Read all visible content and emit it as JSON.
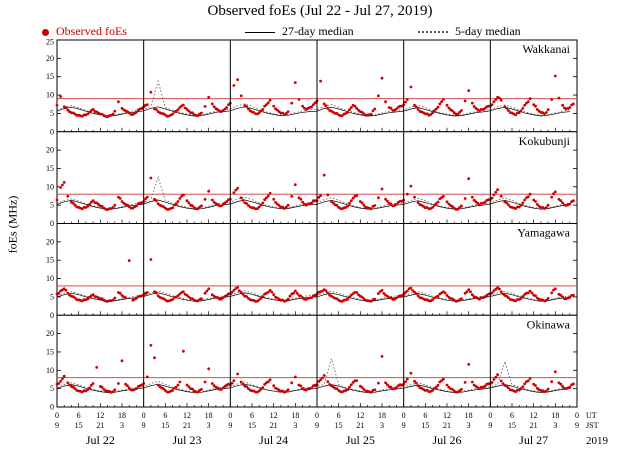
{
  "title": "Observed foEs (Jul 22 - Jul 27, 2019)",
  "legend": [
    {
      "label": "Observed foEs",
      "marker": "dot",
      "color": "#cc0000"
    },
    {
      "label": "27-day median",
      "marker": "solid-line",
      "color": "#000000"
    },
    {
      "label": "5-day median",
      "marker": "dotted-line",
      "color": "#666666"
    }
  ],
  "ylabel": "foEs (MHz)",
  "corner": {
    "ut": "UT",
    "jst": "JST",
    "year": "2019"
  },
  "threshold_color": "#cc3333",
  "x_axis": {
    "days": [
      "Jul 22",
      "Jul 23",
      "Jul 24",
      "Jul 25",
      "Jul 26",
      "Jul 27"
    ],
    "ut_ticks": [
      0,
      6,
      12,
      18
    ],
    "jst_ticks": [
      9,
      15,
      21,
      3
    ],
    "hours_total": 144
  },
  "chart_data": [
    {
      "type": "scatter+line",
      "station": "Wakkanai",
      "ylim": [
        0,
        25
      ],
      "yticks": [
        0,
        5,
        10,
        15,
        20,
        25
      ],
      "threshold_mhz": 9,
      "observed_step_hours": 1,
      "median_step_hours": 2,
      "observed": [
        7.2,
        9.6,
        6.8,
        5.9,
        5.2,
        4.8,
        4.5,
        4.2,
        4.6,
        5.3,
        6.1,
        5.4,
        4.8,
        4.4,
        4.1,
        4.5,
        5.6,
        8.2,
        6.4,
        5.7,
        5.1,
        4.7,
        5.3,
        6.2,
        6.8,
        7.4,
        10.8,
        6.2,
        5.5,
        5.0,
        4.6,
        4.3,
        4.8,
        5.6,
        6.6,
        7.3,
        6.1,
        5.2,
        4.7,
        4.4,
        5.1,
        6.9,
        9.4,
        7.6,
        6.3,
        5.6,
        5.8,
        6.6,
        7.8,
        12.6,
        14.2,
        9.8,
        7.1,
        6.2,
        5.4,
        4.9,
        5.2,
        6.1,
        7.4,
        8.6,
        7.0,
        5.9,
        5.1,
        4.7,
        5.5,
        7.8,
        13.4,
        8.8,
        7.0,
        6.1,
        6.6,
        7.4,
        8.4,
        13.8,
        7.6,
        6.4,
        5.6,
        5.0,
        4.6,
        4.4,
        5.0,
        6.0,
        7.2,
        6.4,
        5.5,
        4.9,
        4.5,
        4.8,
        6.2,
        9.8,
        14.6,
        8.2,
        6.6,
        5.8,
        6.2,
        7.0,
        7.4,
        8.8,
        12.2,
        7.2,
        6.1,
        5.4,
        4.9,
        4.5,
        5.1,
        6.2,
        7.6,
        8.8,
        7.2,
        6.0,
        5.2,
        4.8,
        5.8,
        8.4,
        11.2,
        7.8,
        6.4,
        5.7,
        6.1,
        6.8,
        7.0,
        8.2,
        9.4,
        8.6,
        6.8,
        5.8,
        5.1,
        4.6,
        5.2,
        6.4,
        7.8,
        9.0,
        7.4,
        6.1,
        5.3,
        4.9,
        6.0,
        8.8,
        15.2,
        9.2,
        7.2,
        6.2,
        6.6,
        7.6
      ],
      "median27": [
        5.6,
        6.3,
        6.7,
        6.2,
        5.6,
        5.0,
        4.6,
        4.3,
        4.4,
        4.8,
        5.2,
        5.4,
        5.7,
        6.4,
        6.8,
        6.2,
        5.6,
        5.0,
        4.6,
        4.3,
        4.4,
        4.8,
        5.3,
        5.5,
        5.7,
        6.4,
        6.8,
        6.3,
        5.7,
        5.1,
        4.7,
        4.4,
        4.5,
        4.9,
        5.3,
        5.5,
        5.6,
        6.3,
        6.7,
        6.2,
        5.6,
        5.0,
        4.6,
        4.3,
        4.4,
        4.8,
        5.2,
        5.4,
        5.6,
        6.2,
        6.6,
        6.1,
        5.5,
        5.0,
        4.6,
        4.3,
        4.4,
        4.8,
        5.2,
        5.4,
        5.7,
        6.3,
        6.7,
        6.2,
        5.6,
        5.0,
        4.6,
        4.3,
        4.5,
        4.9,
        5.3,
        5.5
      ],
      "median5": [
        5.9,
        6.7,
        7.1,
        6.5,
        5.8,
        5.2,
        4.8,
        4.5,
        4.6,
        5.0,
        5.5,
        5.8,
        6.1,
        7.0,
        13.8,
        6.7,
        5.9,
        5.3,
        4.8,
        4.5,
        4.6,
        5.1,
        5.6,
        6.0,
        6.2,
        7.1,
        7.6,
        6.9,
        6.0,
        5.4,
        4.9,
        4.6,
        4.7,
        5.2,
        5.7,
        6.1,
        6.0,
        6.9,
        7.4,
        6.7,
        5.9,
        5.3,
        4.8,
        4.5,
        4.6,
        5.1,
        5.6,
        5.9,
        5.9,
        6.7,
        7.2,
        6.6,
        5.8,
        5.2,
        4.8,
        4.5,
        4.6,
        5.0,
        5.5,
        5.8,
        6.0,
        6.8,
        7.3,
        6.7,
        5.9,
        5.3,
        4.8,
        4.5,
        4.7,
        5.1,
        5.6,
        6.0
      ]
    },
    {
      "type": "scatter+line",
      "station": "Kokubunji",
      "ylim": [
        0,
        25
      ],
      "yticks": [
        0,
        5,
        10,
        15,
        20,
        25
      ],
      "threshold_mhz": 8,
      "observed_step_hours": 1,
      "median_step_hours": 2,
      "observed": [
        6.4,
        9.8,
        11.2,
        7.4,
        5.8,
        5.0,
        4.4,
        4.0,
        4.4,
        5.2,
        6.2,
        5.6,
        4.8,
        4.2,
        3.8,
        4.1,
        5.0,
        7.2,
        6.0,
        5.2,
        4.6,
        4.2,
        4.8,
        5.6,
        6.0,
        7.2,
        12.4,
        6.6,
        5.4,
        4.8,
        4.2,
        3.9,
        4.3,
        5.4,
        6.8,
        7.8,
        6.2,
        5.0,
        4.3,
        4.0,
        4.8,
        6.6,
        8.8,
        6.4,
        5.4,
        4.8,
        5.2,
        6.0,
        6.6,
        8.4,
        9.6,
        7.0,
        5.6,
        4.9,
        4.3,
        4.0,
        4.5,
        5.6,
        7.0,
        8.2,
        6.6,
        5.3,
        4.5,
        4.1,
        5.0,
        7.4,
        10.6,
        7.0,
        5.8,
        5.0,
        5.4,
        6.2,
        6.2,
        7.6,
        13.2,
        7.8,
        6.0,
        5.1,
        4.4,
        4.0,
        4.4,
        5.5,
        6.9,
        7.6,
        6.0,
        5.0,
        4.3,
        4.0,
        4.9,
        7.0,
        9.4,
        6.6,
        5.5,
        4.8,
        5.2,
        6.1,
        6.4,
        8.0,
        10.2,
        7.2,
        5.7,
        5.0,
        4.3,
        4.0,
        4.4,
        5.4,
        6.7,
        7.4,
        5.9,
        4.9,
        4.2,
        3.9,
        4.8,
        6.8,
        12.2,
        7.2,
        5.9,
        5.1,
        5.5,
        6.3,
        6.5,
        7.8,
        9.2,
        7.4,
        5.9,
        5.1,
        4.4,
        4.1,
        4.5,
        5.6,
        7.0,
        8.0,
        6.4,
        5.2,
        4.4,
        4.1,
        5.0,
        7.2,
        8.6,
        6.6,
        5.6,
        4.9,
        5.3,
        6.2
      ],
      "median27": [
        5.2,
        5.9,
        6.3,
        5.8,
        5.2,
        4.6,
        4.2,
        3.9,
        4.0,
        4.4,
        4.8,
        5.0,
        5.3,
        6.0,
        6.4,
        5.8,
        5.2,
        4.6,
        4.2,
        3.9,
        4.0,
        4.4,
        4.9,
        5.1,
        5.3,
        6.0,
        6.4,
        5.9,
        5.3,
        4.7,
        4.3,
        4.0,
        4.1,
        4.5,
        4.9,
        5.1,
        5.2,
        5.9,
        6.3,
        5.8,
        5.2,
        4.6,
        4.2,
        3.9,
        4.0,
        4.4,
        4.8,
        5.0,
        5.2,
        5.8,
        6.2,
        5.7,
        5.1,
        4.6,
        4.2,
        3.9,
        4.0,
        4.4,
        4.8,
        5.0,
        5.3,
        5.9,
        6.3,
        5.8,
        5.2,
        4.6,
        4.2,
        3.9,
        4.1,
        4.5,
        4.9,
        5.1
      ],
      "median5": [
        5.5,
        6.3,
        6.7,
        6.1,
        5.4,
        4.8,
        4.4,
        4.1,
        4.2,
        4.6,
        5.1,
        5.4,
        5.7,
        6.6,
        12.6,
        6.3,
        5.5,
        4.9,
        4.4,
        4.1,
        4.2,
        4.7,
        5.2,
        5.6,
        5.8,
        6.7,
        7.2,
        6.5,
        5.6,
        5.0,
        4.5,
        4.2,
        4.3,
        4.8,
        5.3,
        5.7,
        5.6,
        6.5,
        7.0,
        6.3,
        5.5,
        4.9,
        4.4,
        4.1,
        4.2,
        4.7,
        5.2,
        5.5,
        5.5,
        6.3,
        6.8,
        6.2,
        5.4,
        4.8,
        4.4,
        4.1,
        4.2,
        4.6,
        5.1,
        5.4,
        5.6,
        6.4,
        6.9,
        6.3,
        5.5,
        4.9,
        4.4,
        4.1,
        4.3,
        4.7,
        5.2,
        5.6
      ]
    },
    {
      "type": "scatter+line",
      "station": "Yamagawa",
      "ylim": [
        0,
        25
      ],
      "yticks": [
        0,
        5,
        10,
        15,
        20,
        25
      ],
      "threshold_mhz": 8,
      "observed_step_hours": 1,
      "median_step_hours": 2,
      "observed": [
        5.8,
        6.6,
        7.2,
        6.0,
        5.2,
        4.7,
        4.2,
        3.9,
        4.2,
        4.9,
        5.6,
        5.0,
        4.5,
        4.1,
        3.8,
        4.0,
        4.7,
        6.2,
        5.4,
        4.8,
        14.9,
        4.1,
        4.6,
        5.2,
        5.6,
        6.2,
        15.2,
        6.4,
        5.3,
        4.7,
        4.2,
        3.9,
        4.3,
        5.0,
        5.8,
        6.4,
        5.4,
        4.6,
        4.1,
        3.9,
        4.5,
        6.0,
        7.2,
        5.6,
        4.9,
        4.4,
        4.8,
        5.4,
        5.9,
        6.8,
        7.6,
        6.2,
        5.2,
        4.6,
        4.1,
        3.8,
        4.2,
        5.1,
        6.0,
        6.8,
        5.6,
        4.7,
        4.1,
        3.8,
        4.4,
        5.8,
        6.6,
        5.4,
        4.7,
        4.3,
        4.7,
        5.3,
        5.7,
        6.4,
        7.0,
        6.1,
        5.2,
        4.6,
        4.1,
        3.8,
        4.2,
        5.0,
        5.9,
        6.2,
        5.2,
        4.5,
        4.0,
        3.8,
        4.4,
        5.9,
        6.8,
        5.5,
        4.8,
        4.3,
        4.7,
        5.3,
        5.8,
        6.6,
        7.4,
        6.3,
        5.3,
        4.7,
        4.2,
        3.9,
        4.2,
        5.0,
        5.8,
        6.4,
        5.4,
        4.6,
        4.1,
        3.9,
        4.5,
        6.0,
        7.0,
        5.6,
        4.9,
        4.4,
        4.8,
        5.4,
        5.9,
        6.7,
        7.5,
        6.4,
        5.4,
        4.8,
        4.2,
        3.9,
        4.3,
        5.1,
        6.0,
        6.6,
        5.5,
        4.7,
        4.2,
        3.9,
        4.6,
        6.1,
        7.2,
        5.7,
        5.0,
        4.5,
        4.9,
        5.5
      ],
      "median27": [
        5.0,
        5.6,
        6.0,
        5.6,
        5.0,
        4.5,
        4.1,
        3.8,
        3.9,
        4.3,
        4.6,
        4.8,
        5.1,
        5.7,
        6.1,
        5.6,
        5.0,
        4.5,
        4.1,
        3.8,
        3.9,
        4.3,
        4.7,
        4.9,
        5.1,
        5.7,
        6.1,
        5.7,
        5.1,
        4.6,
        4.2,
        3.9,
        4.0,
        4.4,
        4.7,
        4.9,
        5.0,
        5.6,
        6.0,
        5.6,
        5.0,
        4.5,
        4.1,
        3.8,
        3.9,
        4.3,
        4.6,
        4.8,
        5.0,
        5.5,
        5.9,
        5.5,
        4.9,
        4.5,
        4.1,
        3.8,
        3.9,
        4.3,
        4.6,
        4.8,
        5.1,
        5.6,
        6.0,
        5.6,
        5.0,
        4.5,
        4.1,
        3.8,
        4.0,
        4.4,
        4.7,
        4.9
      ],
      "median5": [
        5.3,
        6.0,
        6.4,
        5.9,
        5.2,
        4.7,
        4.3,
        4.0,
        4.1,
        4.5,
        4.9,
        5.2,
        5.4,
        6.1,
        6.6,
        6.0,
        5.3,
        4.8,
        4.3,
        4.0,
        4.1,
        4.6,
        5.0,
        5.3,
        5.5,
        6.2,
        6.7,
        6.1,
        5.4,
        4.8,
        4.4,
        4.1,
        4.2,
        4.6,
        5.1,
        5.4,
        5.4,
        6.1,
        6.5,
        6.0,
        5.3,
        4.8,
        4.3,
        4.0,
        4.1,
        4.6,
        5.0,
        5.3,
        5.3,
        6.0,
        6.4,
        5.9,
        5.2,
        4.7,
        4.3,
        4.0,
        4.1,
        4.5,
        4.9,
        5.2,
        5.4,
        6.1,
        6.5,
        6.0,
        5.3,
        4.8,
        4.3,
        4.0,
        4.2,
        4.6,
        5.0,
        5.3
      ]
    },
    {
      "type": "scatter+line",
      "station": "Okinawa",
      "ylim": [
        0,
        25
      ],
      "yticks": [
        0,
        5,
        10,
        15,
        20,
        25
      ],
      "threshold_mhz": 8,
      "observed_step_hours": 1,
      "median_step_hours": 2,
      "observed": [
        6.2,
        7.0,
        8.4,
        6.6,
        5.6,
        5.0,
        4.4,
        4.1,
        4.4,
        5.2,
        6.4,
        10.8,
        5.6,
        4.8,
        4.3,
        4.0,
        4.7,
        6.4,
        12.6,
        6.2,
        5.2,
        4.6,
        5.0,
        5.8,
        6.4,
        8.2,
        16.8,
        13.4,
        6.0,
        5.2,
        4.5,
        4.1,
        4.5,
        5.4,
        6.8,
        15.2,
        6.0,
        5.0,
        4.4,
        4.1,
        4.8,
        6.8,
        10.4,
        6.4,
        5.4,
        4.8,
        5.2,
        6.0,
        6.0,
        7.2,
        9.0,
        6.8,
        5.7,
        5.0,
        4.4,
        4.1,
        4.4,
        5.3,
        6.6,
        7.4,
        5.8,
        4.9,
        4.3,
        4.0,
        4.7,
        6.6,
        8.2,
        6.0,
        5.1,
        4.6,
        5.0,
        5.8,
        6.1,
        7.4,
        8.6,
        6.9,
        5.8,
        5.1,
        4.5,
        4.1,
        4.5,
        5.4,
        6.7,
        7.2,
        5.7,
        4.8,
        4.3,
        4.0,
        4.7,
        6.5,
        13.8,
        6.6,
        5.5,
        4.9,
        5.3,
        6.1,
        6.2,
        7.6,
        9.2,
        7.0,
        5.8,
        5.1,
        4.5,
        4.2,
        4.5,
        5.4,
        6.8,
        7.6,
        6.0,
        5.0,
        4.4,
        4.1,
        4.8,
        6.7,
        11.6,
        6.8,
        5.6,
        5.0,
        5.4,
        6.2,
        6.3,
        7.5,
        8.8,
        7.1,
        5.9,
        5.2,
        4.6,
        4.2,
        4.6,
        5.5,
        6.9,
        7.8,
        6.2,
        5.1,
        4.5,
        4.2,
        4.9,
        6.9,
        9.6,
        6.6,
        5.6,
        5.0,
        5.4,
        6.3
      ],
      "median27": [
        5.1,
        5.7,
        6.1,
        5.7,
        5.1,
        4.6,
        4.2,
        3.9,
        4.0,
        4.4,
        4.7,
        4.9,
        5.2,
        5.8,
        6.2,
        5.7,
        5.1,
        4.6,
        4.2,
        3.9,
        4.0,
        4.4,
        4.8,
        5.0,
        5.2,
        5.8,
        6.2,
        5.8,
        5.2,
        4.7,
        4.3,
        4.0,
        4.1,
        4.5,
        4.8,
        5.0,
        5.1,
        5.7,
        6.1,
        5.7,
        5.1,
        4.6,
        4.2,
        3.9,
        4.0,
        4.4,
        4.7,
        4.9,
        5.1,
        5.6,
        6.0,
        5.6,
        5.0,
        4.6,
        4.2,
        3.9,
        4.0,
        4.4,
        4.7,
        4.9,
        5.2,
        5.7,
        6.1,
        5.7,
        5.1,
        4.6,
        4.2,
        3.9,
        4.1,
        4.5,
        4.8,
        5.0
      ],
      "median5": [
        5.4,
        6.1,
        6.6,
        6.0,
        5.3,
        4.8,
        4.4,
        4.1,
        4.2,
        4.6,
        5.0,
        5.3,
        5.6,
        6.4,
        7.0,
        6.2,
        5.4,
        4.9,
        4.4,
        4.1,
        4.2,
        4.7,
        5.1,
        5.5,
        5.5,
        6.3,
        6.8,
        6.1,
        5.4,
        4.8,
        4.4,
        4.1,
        4.2,
        4.6,
        5.1,
        5.4,
        5.5,
        6.2,
        13.2,
        6.1,
        5.3,
        4.8,
        4.4,
        4.1,
        4.2,
        4.6,
        5.0,
        5.4,
        5.4,
        6.1,
        6.6,
        6.0,
        5.3,
        4.8,
        4.4,
        4.1,
        4.2,
        4.6,
        5.0,
        5.3,
        5.5,
        6.2,
        12.4,
        6.1,
        5.4,
        4.8,
        4.4,
        4.1,
        4.3,
        4.7,
        5.1,
        5.4
      ]
    }
  ]
}
